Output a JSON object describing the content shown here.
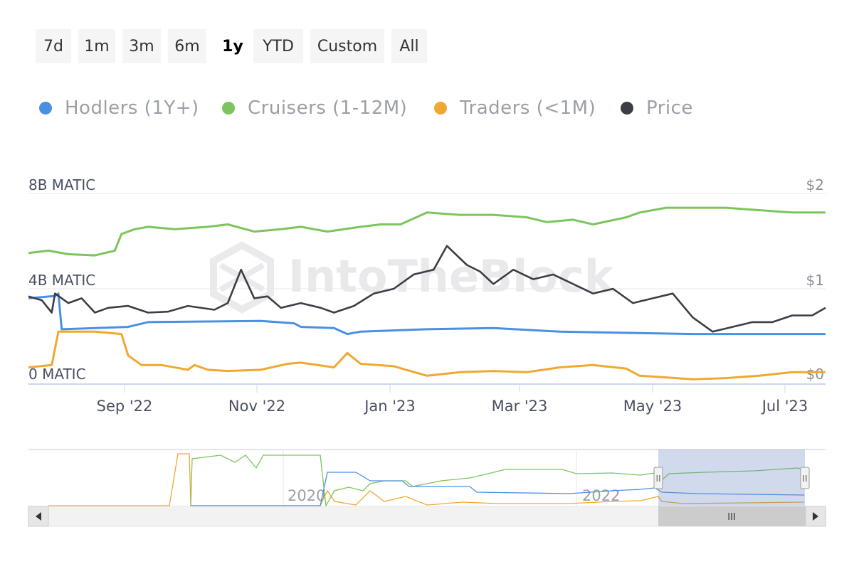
{
  "range_selector": {
    "buttons": [
      "7d",
      "1m",
      "3m",
      "6m",
      "1y",
      "YTD",
      "Custom",
      "All"
    ],
    "active": "1y"
  },
  "watermark": "IntoTheBlock",
  "colors": {
    "hodlers": "#4a90e2",
    "cruisers": "#7cc55c",
    "traders": "#f0a830",
    "price": "#3b3f45"
  },
  "chart_data": {
    "type": "line",
    "title": "",
    "x_ticks": [
      "Sep '22",
      "Nov '22",
      "Jan '23",
      "Mar '23",
      "May '23",
      "Jul '23"
    ],
    "y_left_ticks": [
      "0 MATIC",
      "4B MATIC",
      "8B MATIC"
    ],
    "y_left_range": [
      0,
      8
    ],
    "y_right_ticks": [
      "$0",
      "$1",
      "$2"
    ],
    "y_right_range": [
      0,
      2
    ],
    "x_range_months": [
      0,
      12
    ],
    "legend_position": "top",
    "grid": true,
    "series": [
      {
        "name": "Hodlers (1Y+)",
        "axis": "left",
        "color_key": "hodlers",
        "x": [
          0,
          0.4,
          0.45,
          0.5,
          1.5,
          1.8,
          3.5,
          4,
          4.1,
          4.6,
          4.8,
          5.0,
          6.0,
          7.0,
          8.0,
          9.0,
          10.0,
          11.0,
          12.0
        ],
        "values": [
          3.6,
          3.7,
          3.8,
          2.3,
          2.4,
          2.6,
          2.65,
          2.55,
          2.4,
          2.35,
          2.1,
          2.2,
          2.3,
          2.35,
          2.2,
          2.15,
          2.1,
          2.1,
          2.1
        ]
      },
      {
        "name": "Cruisers (1-12M)",
        "axis": "left",
        "color_key": "cruisers",
        "x": [
          0,
          0.3,
          0.6,
          1.0,
          1.3,
          1.4,
          1.6,
          1.8,
          2.2,
          2.7,
          3.0,
          3.4,
          3.8,
          4.1,
          4.5,
          5.0,
          5.3,
          5.6,
          6.0,
          6.5,
          7.0,
          7.5,
          7.8,
          8.2,
          8.5,
          9.0,
          9.2,
          9.6,
          10.0,
          10.5,
          11.0,
          11.5,
          12.0
        ],
        "values": [
          5.5,
          5.6,
          5.45,
          5.4,
          5.6,
          6.3,
          6.5,
          6.6,
          6.5,
          6.6,
          6.7,
          6.4,
          6.5,
          6.6,
          6.4,
          6.6,
          6.7,
          6.7,
          7.2,
          7.1,
          7.1,
          7.0,
          6.8,
          6.9,
          6.7,
          7.0,
          7.2,
          7.4,
          7.4,
          7.4,
          7.3,
          7.2,
          7.2
        ]
      },
      {
        "name": "Traders (<1M)",
        "axis": "left",
        "color_key": "traders",
        "x": [
          0,
          0.35,
          0.45,
          0.5,
          1.0,
          1.4,
          1.5,
          1.7,
          2.0,
          2.4,
          2.5,
          2.7,
          3.0,
          3.5,
          3.9,
          4.1,
          4.6,
          4.8,
          5.0,
          5.5,
          6.0,
          6.5,
          7.0,
          7.5,
          8.0,
          8.5,
          9.0,
          9.2,
          9.5,
          10.0,
          10.5,
          11.0,
          11.5,
          12.0
        ],
        "values": [
          0.7,
          0.8,
          2.2,
          2.2,
          2.2,
          2.1,
          1.2,
          0.8,
          0.8,
          0.6,
          0.8,
          0.6,
          0.55,
          0.6,
          0.85,
          0.9,
          0.7,
          1.3,
          0.85,
          0.75,
          0.35,
          0.5,
          0.55,
          0.5,
          0.7,
          0.8,
          0.65,
          0.35,
          0.3,
          0.2,
          0.25,
          0.35,
          0.5,
          0.5
        ]
      },
      {
        "name": "Price",
        "axis": "right",
        "color_key": "price",
        "x": [
          0,
          0.2,
          0.35,
          0.4,
          0.6,
          0.8,
          1.0,
          1.2,
          1.5,
          1.8,
          2.1,
          2.4,
          2.8,
          3.0,
          3.2,
          3.4,
          3.6,
          3.8,
          4.1,
          4.4,
          4.6,
          4.9,
          5.2,
          5.5,
          5.8,
          6.1,
          6.3,
          6.6,
          6.8,
          7.0,
          7.3,
          7.6,
          7.9,
          8.2,
          8.5,
          8.8,
          9.1,
          9.4,
          9.7,
          10.0,
          10.3,
          10.6,
          10.9,
          11.2,
          11.5,
          11.8,
          12.0
        ],
        "values": [
          0.92,
          0.88,
          0.75,
          0.95,
          0.85,
          0.9,
          0.75,
          0.8,
          0.82,
          0.75,
          0.76,
          0.82,
          0.78,
          0.85,
          1.2,
          0.9,
          0.92,
          0.8,
          0.85,
          0.8,
          0.75,
          0.82,
          0.95,
          1.0,
          1.15,
          1.2,
          1.45,
          1.25,
          1.18,
          1.05,
          1.2,
          1.1,
          1.15,
          1.05,
          0.95,
          1.0,
          0.85,
          0.9,
          0.95,
          0.7,
          0.55,
          0.6,
          0.65,
          0.65,
          0.72,
          0.72,
          0.8
        ]
      }
    ]
  },
  "navigator": {
    "labels": [
      "2020",
      "2022"
    ],
    "handle_grip": "II",
    "scrollbar_grip": "III"
  }
}
